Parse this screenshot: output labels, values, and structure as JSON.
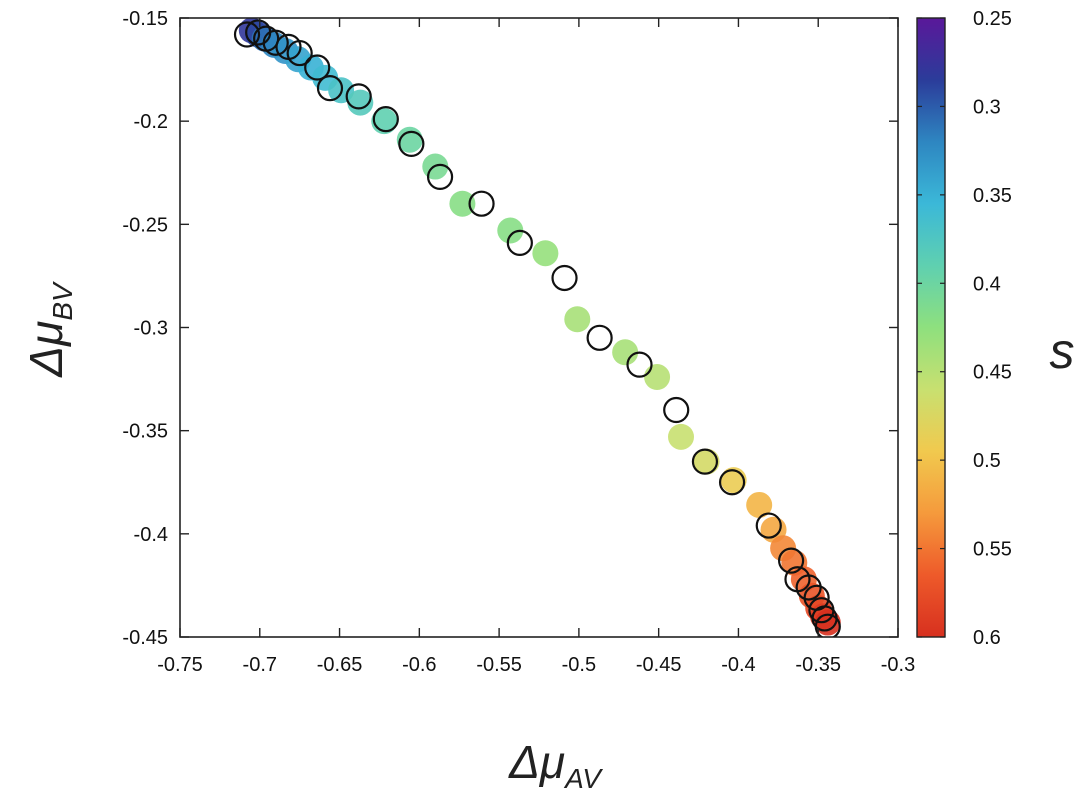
{
  "chart_data": {
    "type": "scatter",
    "xlabel": {
      "symbol": "Δμ",
      "sub": "AV"
    },
    "ylabel": {
      "symbol": "Δμ",
      "sub": "BV"
    },
    "xlim": [
      -0.75,
      -0.3
    ],
    "ylim": [
      -0.45,
      -0.15
    ],
    "x_ticks": [
      -0.75,
      -0.7,
      -0.65,
      -0.6,
      -0.55,
      -0.5,
      -0.45,
      -0.4,
      -0.35,
      -0.3
    ],
    "x_tick_labels": [
      "-0.75",
      "-0.7",
      "-0.65",
      "-0.6",
      "-0.55",
      "-0.5",
      "-0.45",
      "-0.4",
      "-0.35",
      "-0.3"
    ],
    "y_ticks": [
      -0.15,
      -0.2,
      -0.25,
      -0.3,
      -0.35,
      -0.4,
      -0.45
    ],
    "y_tick_labels": [
      "-0.15",
      "-0.2",
      "-0.25",
      "-0.3",
      "-0.35",
      "-0.4",
      "-0.45"
    ],
    "grid": false,
    "colorbar": {
      "label": "s",
      "range": [
        0.25,
        0.6
      ],
      "ticks": [
        0.25,
        0.3,
        0.35,
        0.4,
        0.45,
        0.5,
        0.55,
        0.6
      ],
      "tick_labels": [
        "0.25",
        "0.3",
        "0.35",
        "0.4",
        "0.45",
        "0.5",
        "0.55",
        "0.6"
      ],
      "colormap": [
        "#5a189a",
        "#2b3c9a",
        "#2e86c1",
        "#3bb8d8",
        "#5fd0b0",
        "#8ee07e",
        "#c8e070",
        "#f1c94e",
        "#f59a3c",
        "#ee5a2a",
        "#d7301f"
      ]
    },
    "series": [
      {
        "marker": "filled-circle",
        "points": [
          {
            "x": -0.705,
            "y": -0.156,
            "s": 0.28
          },
          {
            "x": -0.701,
            "y": -0.158,
            "s": 0.29
          },
          {
            "x": -0.697,
            "y": -0.16,
            "s": 0.31
          },
          {
            "x": -0.691,
            "y": -0.163,
            "s": 0.32
          },
          {
            "x": -0.684,
            "y": -0.166,
            "s": 0.33
          },
          {
            "x": -0.676,
            "y": -0.17,
            "s": 0.34
          },
          {
            "x": -0.668,
            "y": -0.174,
            "s": 0.35
          },
          {
            "x": -0.659,
            "y": -0.179,
            "s": 0.36
          },
          {
            "x": -0.649,
            "y": -0.185,
            "s": 0.37
          },
          {
            "x": -0.637,
            "y": -0.191,
            "s": 0.38
          },
          {
            "x": -0.622,
            "y": -0.2,
            "s": 0.39
          },
          {
            "x": -0.606,
            "y": -0.209,
            "s": 0.4
          },
          {
            "x": -0.59,
            "y": -0.222,
            "s": 0.41
          },
          {
            "x": -0.573,
            "y": -0.24,
            "s": 0.42
          },
          {
            "x": -0.543,
            "y": -0.253,
            "s": 0.42
          },
          {
            "x": -0.521,
            "y": -0.264,
            "s": 0.43
          },
          {
            "x": -0.501,
            "y": -0.296,
            "s": 0.44
          },
          {
            "x": -0.471,
            "y": -0.312,
            "s": 0.44
          },
          {
            "x": -0.451,
            "y": -0.324,
            "s": 0.45
          },
          {
            "x": -0.436,
            "y": -0.353,
            "s": 0.46
          },
          {
            "x": -0.42,
            "y": -0.365,
            "s": 0.47
          },
          {
            "x": -0.403,
            "y": -0.374,
            "s": 0.49
          },
          {
            "x": -0.387,
            "y": -0.386,
            "s": 0.51
          },
          {
            "x": -0.378,
            "y": -0.398,
            "s": 0.52
          },
          {
            "x": -0.372,
            "y": -0.407,
            "s": 0.54
          },
          {
            "x": -0.365,
            "y": -0.414,
            "s": 0.55
          },
          {
            "x": -0.359,
            "y": -0.422,
            "s": 0.56
          },
          {
            "x": -0.354,
            "y": -0.43,
            "s": 0.57
          },
          {
            "x": -0.35,
            "y": -0.436,
            "s": 0.58
          },
          {
            "x": -0.347,
            "y": -0.44,
            "s": 0.59
          },
          {
            "x": -0.344,
            "y": -0.443,
            "s": 0.6
          }
        ]
      },
      {
        "marker": "open-circle",
        "points": [
          {
            "x": -0.708,
            "y": -0.158
          },
          {
            "x": -0.701,
            "y": -0.157
          },
          {
            "x": -0.696,
            "y": -0.16
          },
          {
            "x": -0.69,
            "y": -0.162
          },
          {
            "x": -0.682,
            "y": -0.164
          },
          {
            "x": -0.675,
            "y": -0.167
          },
          {
            "x": -0.664,
            "y": -0.174
          },
          {
            "x": -0.656,
            "y": -0.184
          },
          {
            "x": -0.638,
            "y": -0.188
          },
          {
            "x": -0.621,
            "y": -0.199
          },
          {
            "x": -0.605,
            "y": -0.211
          },
          {
            "x": -0.587,
            "y": -0.227
          },
          {
            "x": -0.561,
            "y": -0.24
          },
          {
            "x": -0.537,
            "y": -0.259
          },
          {
            "x": -0.509,
            "y": -0.276
          },
          {
            "x": -0.487,
            "y": -0.305
          },
          {
            "x": -0.462,
            "y": -0.318
          },
          {
            "x": -0.439,
            "y": -0.34
          },
          {
            "x": -0.421,
            "y": -0.365
          },
          {
            "x": -0.404,
            "y": -0.375
          },
          {
            "x": -0.381,
            "y": -0.396
          },
          {
            "x": -0.367,
            "y": -0.413
          },
          {
            "x": -0.363,
            "y": -0.422
          },
          {
            "x": -0.356,
            "y": -0.426
          },
          {
            "x": -0.351,
            "y": -0.431
          },
          {
            "x": -0.348,
            "y": -0.437
          },
          {
            "x": -0.346,
            "y": -0.441
          },
          {
            "x": -0.344,
            "y": -0.445
          }
        ]
      }
    ]
  }
}
